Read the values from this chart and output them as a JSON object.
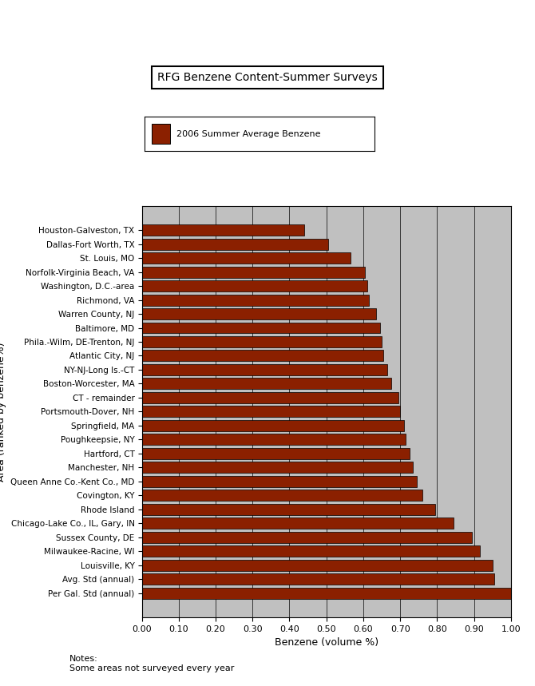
{
  "title": "RFG Benzene Content-Summer Surveys",
  "legend_label": "2006 Summer Average Benzene",
  "xlabel": "Benzene (volume %)",
  "ylabel": "Area (ranked by benzene%)",
  "bar_color": "#8B2000",
  "bar_edge_color": "#000000",
  "background_color": "#C0C0C0",
  "xlim": [
    0.0,
    1.0
  ],
  "xticks": [
    0.0,
    0.1,
    0.2,
    0.3,
    0.4,
    0.5,
    0.6,
    0.7,
    0.8,
    0.9,
    1.0
  ],
  "notes": [
    "Notes:",
    "Some areas not surveyed every year"
  ],
  "categories": [
    "Per Gal. Std (annual)",
    "Avg. Std (annual)",
    "Louisville, KY",
    "Milwaukee-Racine, WI",
    "Sussex County, DE",
    "Chicago-Lake Co., IL, Gary, IN",
    "Rhode Island",
    "Covington, KY",
    "Queen Anne Co.-Kent Co., MD",
    "Manchester, NH",
    "Hartford, CT",
    "Poughkeepsie, NY",
    "Springfield, MA",
    "Portsmouth-Dover, NH",
    "CT - remainder",
    "Boston-Worcester, MA",
    "NY-NJ-Long Is.-CT",
    "Atlantic City, NJ",
    "Phila.-Wilm, DE-Trenton, NJ",
    "Baltimore, MD",
    "Warren County, NJ",
    "Richmond, VA",
    "Washington, D.C.-area",
    "Norfolk-Virginia Beach, VA",
    "St. Louis, MO",
    "Dallas-Fort Worth, TX",
    "Houston-Galveston, TX"
  ],
  "values": [
    1.0,
    0.955,
    0.95,
    0.915,
    0.895,
    0.845,
    0.795,
    0.76,
    0.745,
    0.735,
    0.725,
    0.715,
    0.71,
    0.7,
    0.695,
    0.675,
    0.665,
    0.655,
    0.65,
    0.645,
    0.635,
    0.615,
    0.61,
    0.605,
    0.565,
    0.505,
    0.44
  ]
}
